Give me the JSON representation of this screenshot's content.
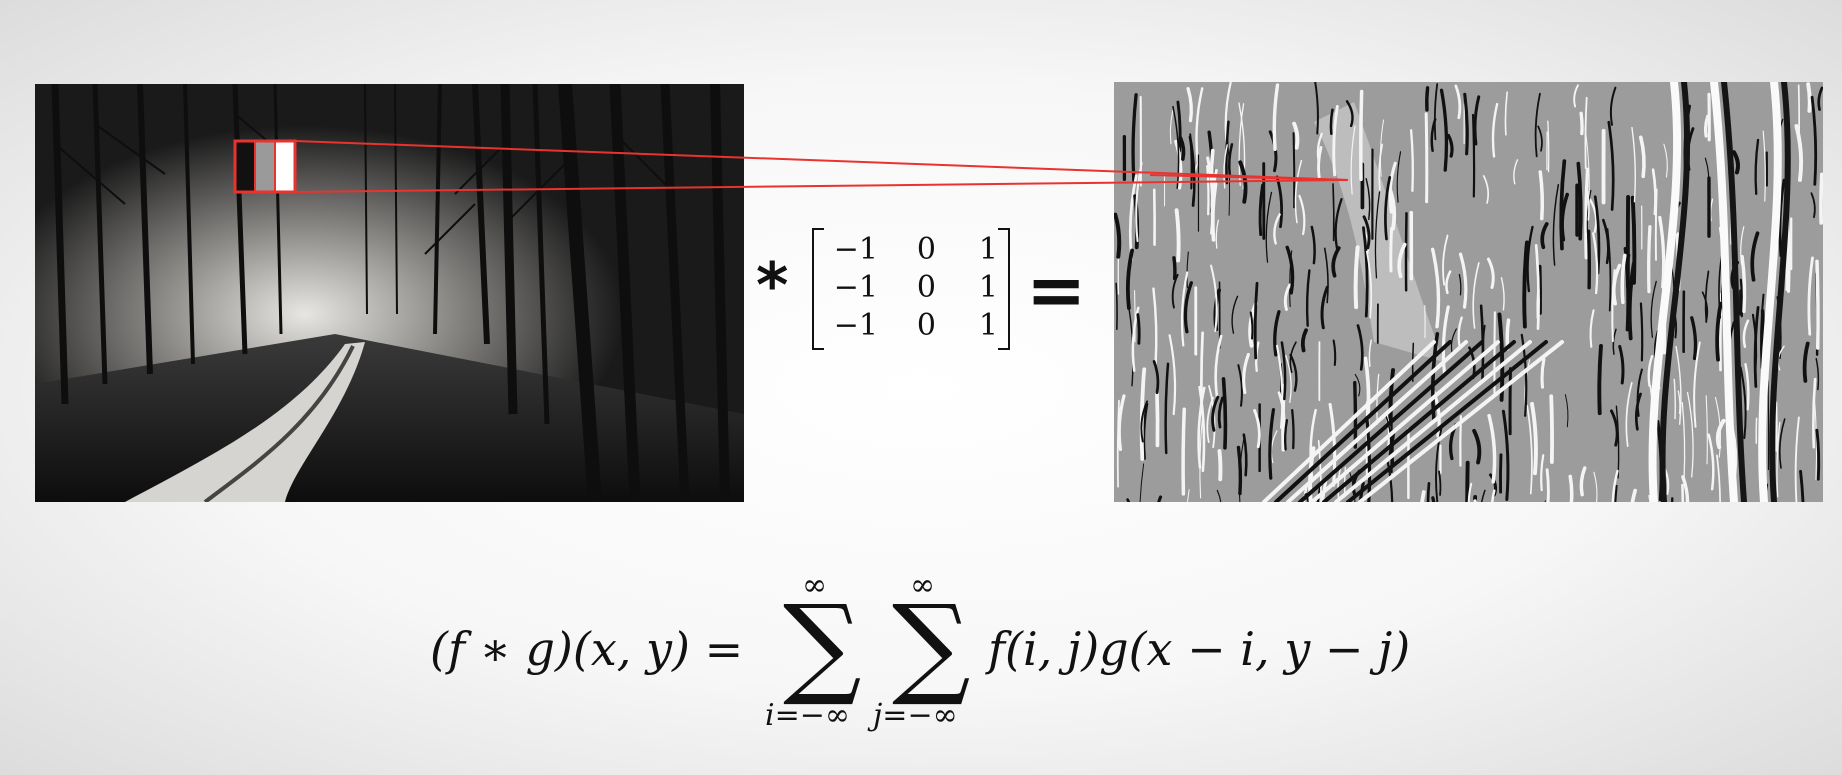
{
  "kernel": {
    "rows": [
      [
        "−1",
        "0",
        "1"
      ],
      [
        "−1",
        "0",
        "1"
      ],
      [
        "−1",
        "0",
        "1"
      ]
    ]
  },
  "operators": {
    "convolve": "*",
    "equals": "="
  },
  "formula": {
    "lhs": "(f ∗ g)(x, y) =",
    "sum_symbol": "∑",
    "sum1_upper": "∞",
    "sum1_lower": "i=−∞",
    "sum2_upper": "∞",
    "sum2_lower": "j=−∞",
    "rhs": "f(i, j)g(x − i, y − j)"
  },
  "colors": {
    "highlight": "#e8332f",
    "text": "#111111"
  },
  "images": {
    "input": "forest-road-photo",
    "output": "edge-detected-image"
  }
}
